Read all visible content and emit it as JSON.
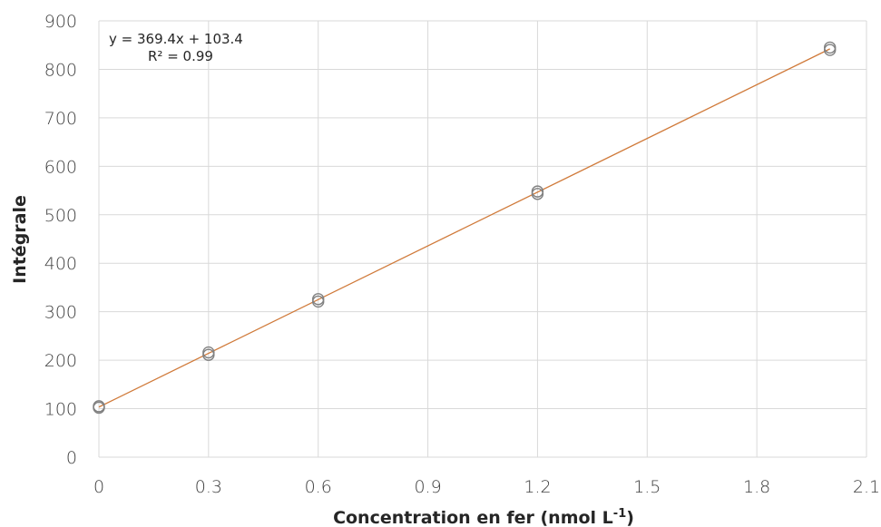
{
  "chart_data": {
    "type": "scatter",
    "title": "",
    "xlabel": "Concentration en fer (nmol L",
    "xlabel_sup": "-1",
    "xlabel_end": ")",
    "ylabel": "Intégrale",
    "xlim": [
      0,
      2.1
    ],
    "ylim": [
      0,
      900
    ],
    "x_ticks": [
      0,
      0.3,
      0.6,
      0.9,
      1.2,
      1.5,
      1.8,
      2.1
    ],
    "x_tick_labels": [
      "0",
      "0.3",
      "0.6",
      "0.9",
      "1.2",
      "1.5",
      "1.8",
      "2.1"
    ],
    "y_ticks": [
      0,
      100,
      200,
      300,
      400,
      500,
      600,
      700,
      800,
      900
    ],
    "y_tick_labels": [
      "0",
      "100",
      "200",
      "300",
      "400",
      "500",
      "600",
      "700",
      "800",
      "900"
    ],
    "grid": true,
    "series": [
      {
        "x": [
          0,
          0,
          0.3,
          0.3,
          0.6,
          0.6,
          1.2,
          1.2,
          2.0,
          2.0
        ],
        "y": [
          102,
          105,
          211,
          216,
          321,
          326,
          543,
          548,
          840,
          845
        ],
        "color": "#808080"
      }
    ],
    "trendline": {
      "slope": 369.4,
      "intercept": 103.4,
      "x_range": [
        0,
        2.0
      ],
      "color": "#d07a3a",
      "equation": "y = 369.4x + 103.4",
      "r2": "R² = 0.99"
    }
  }
}
